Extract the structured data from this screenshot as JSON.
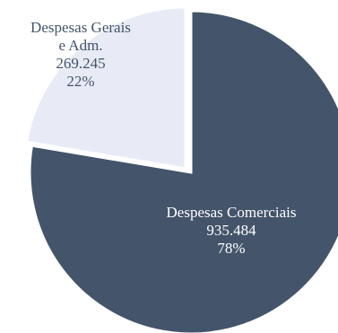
{
  "chart_data": {
    "type": "pie",
    "title": "",
    "slices": [
      {
        "label_lines": [
          "Despesas Comerciais"
        ],
        "value": 935484,
        "value_label": "935.484",
        "percent_label": "78%",
        "color": "#44546a",
        "text_color": "#ffffff"
      },
      {
        "label_lines": [
          "Despesas Gerais",
          "e Adm."
        ],
        "value": 269245,
        "value_label": "269.245",
        "percent_label": "22%",
        "color": "#e8ebf6",
        "text_color": "#44546a"
      }
    ],
    "start_angle_deg": 0,
    "direction": "clockwise",
    "exploded_slice": 1,
    "edge_color": "#ffffff"
  }
}
